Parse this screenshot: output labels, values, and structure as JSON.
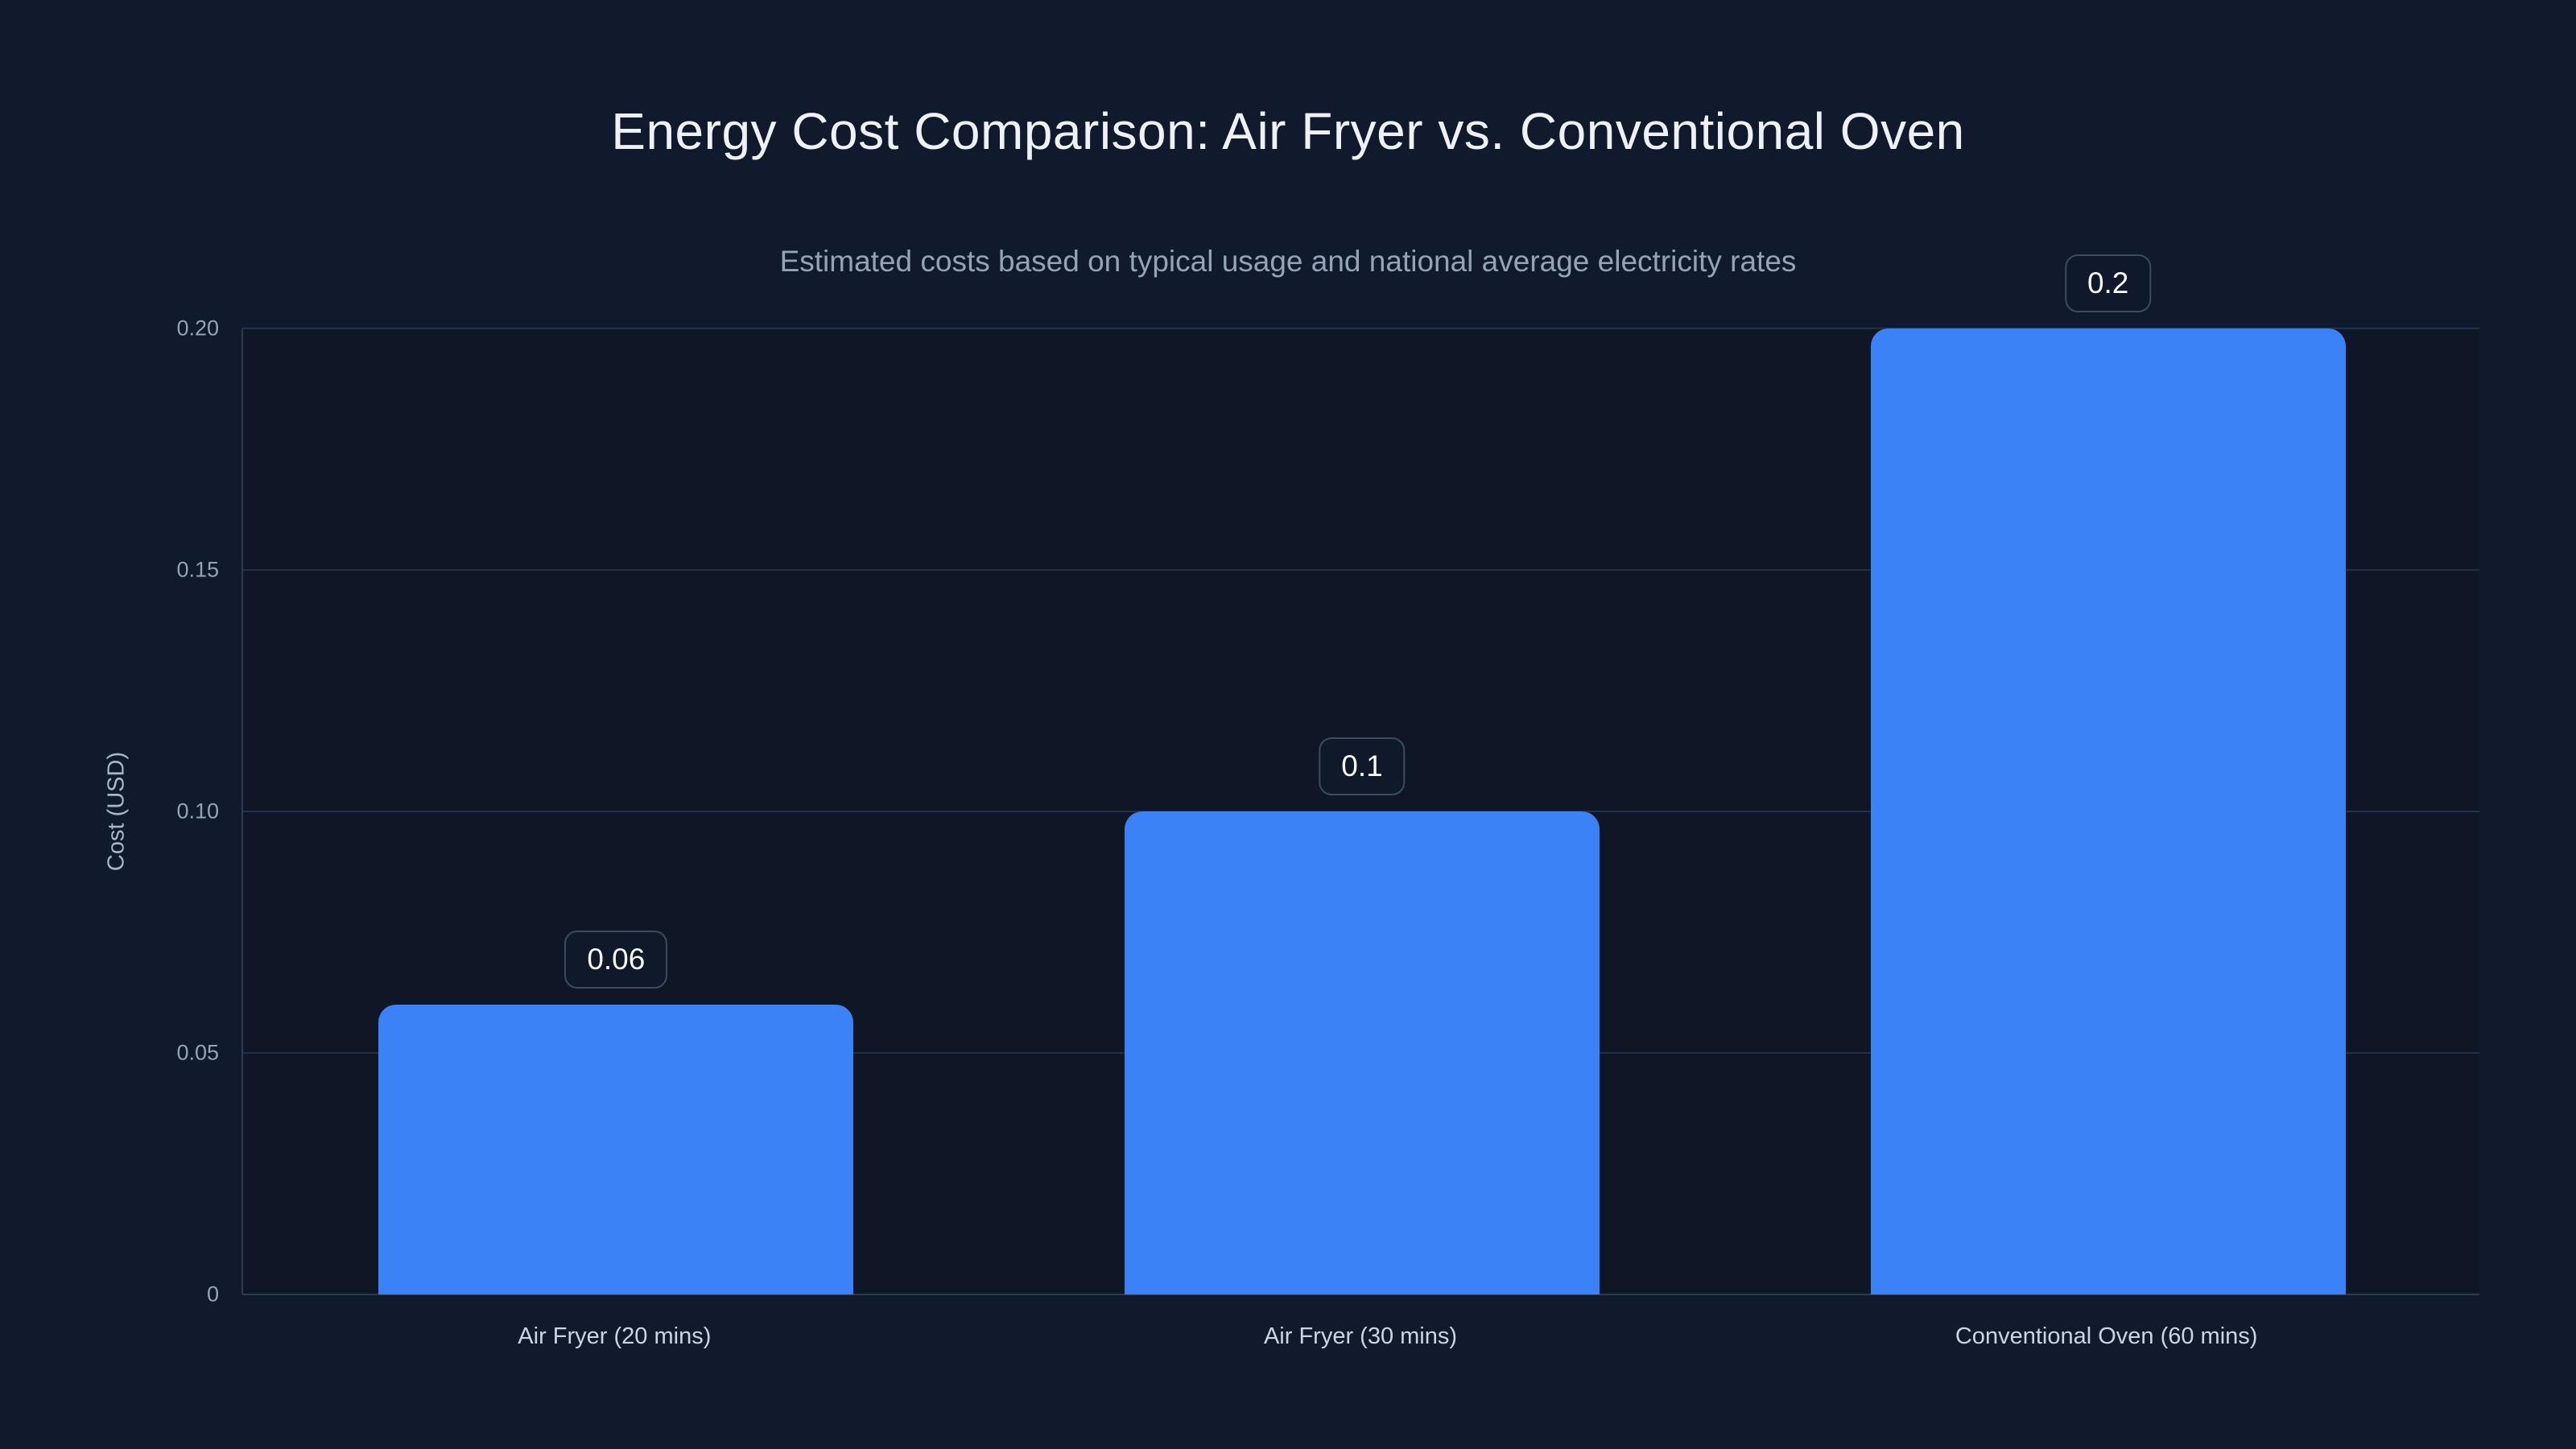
{
  "chart_data": {
    "type": "bar",
    "title": "Energy Cost Comparison: Air Fryer vs. Conventional Oven",
    "subtitle": "Estimated costs based on typical usage and national average electricity rates",
    "ylabel": "Cost (USD)",
    "xlabel": "",
    "categories": [
      "Air Fryer (20 mins)",
      "Air Fryer (30 mins)",
      "Conventional Oven (60 mins)"
    ],
    "values": [
      0.06,
      0.1,
      0.2
    ],
    "value_labels": [
      "0.06",
      "0.1",
      "0.2"
    ],
    "ylim": [
      0,
      0.2
    ],
    "yticks": [
      {
        "value": 0.2,
        "label": "0.20"
      },
      {
        "value": 0.15,
        "label": "0.15"
      },
      {
        "value": 0.1,
        "label": "0.10"
      },
      {
        "value": 0.05,
        "label": "0.05"
      },
      {
        "value": 0.0,
        "label": "0"
      }
    ],
    "grid": true,
    "legend": false,
    "colors": {
      "bar": "#3b82f6",
      "background": "#111a2c",
      "title_text": "#eef2f8",
      "subtitle_text": "#94a3b8",
      "y_tick_text": "#94a3b8",
      "x_tick_text": "#cbd5e1",
      "gridline": "#243047",
      "axis_line": "#2e3b52",
      "badge_border": "#3d4a60",
      "badge_text": "#f8fafc"
    }
  }
}
